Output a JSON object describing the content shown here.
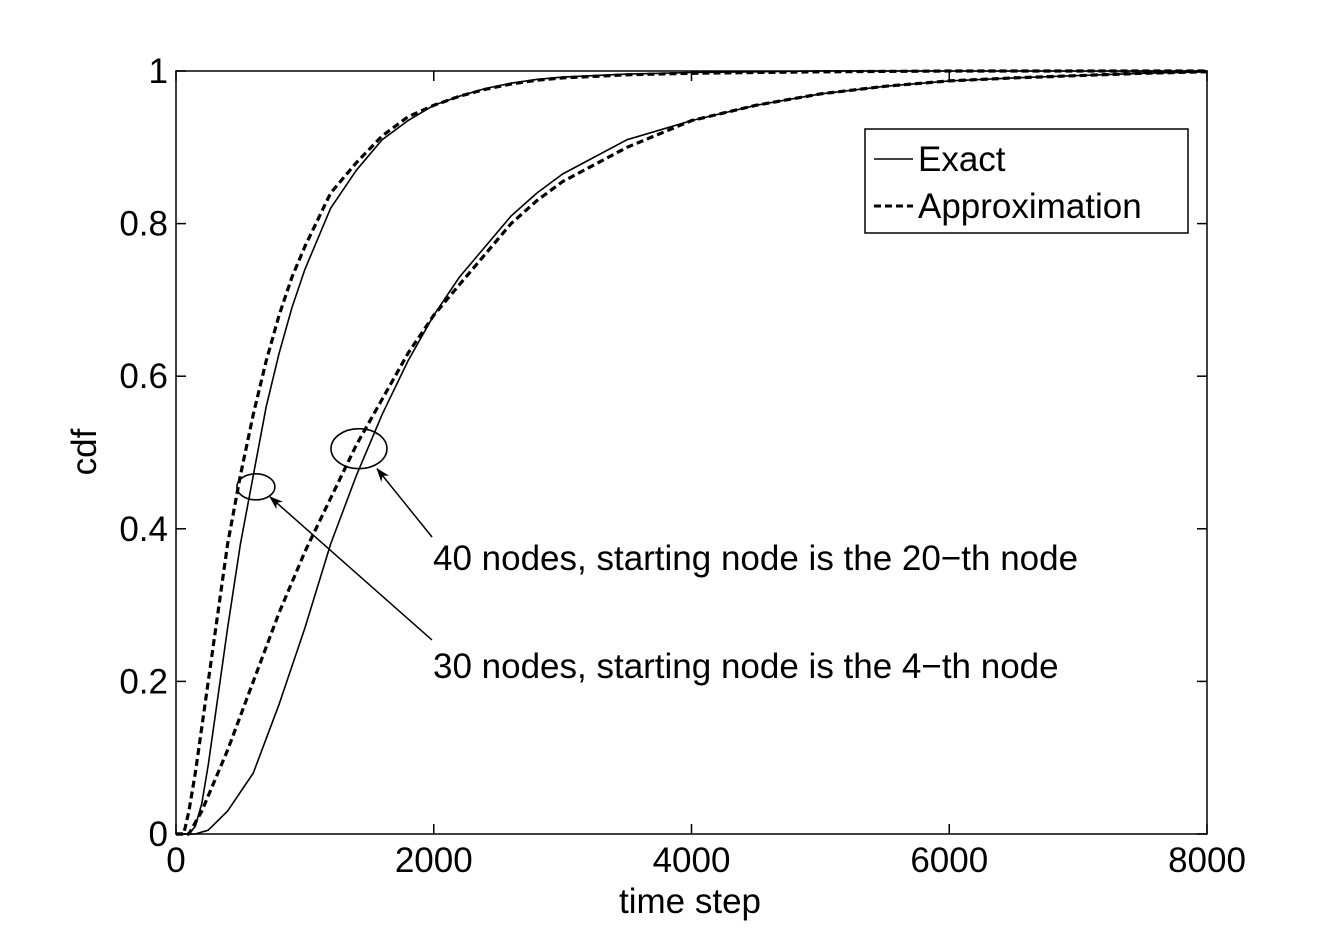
{
  "chart_data": {
    "type": "line",
    "title": "",
    "xlabel": "time step",
    "ylabel": "cdf",
    "xlim": [
      0,
      8000
    ],
    "ylim": [
      0,
      1
    ],
    "xticks": [
      0,
      2000,
      4000,
      6000,
      8000
    ],
    "yticks": [
      0,
      0.2,
      0.4,
      0.6,
      0.8,
      1
    ],
    "xtick_labels": [
      "0",
      "2000",
      "4000",
      "6000",
      "8000"
    ],
    "ytick_labels": [
      "0",
      "0.2",
      "0.4",
      "0.6",
      "0.8",
      "1"
    ],
    "grid": false,
    "legend": {
      "placement": "upper-right",
      "entries": [
        {
          "label": "Exact",
          "style": "solid"
        },
        {
          "label": "Approximation",
          "style": "dashed"
        }
      ]
    },
    "series": [
      {
        "group": "30 nodes, starting node is the 4-th node",
        "legend": "Exact",
        "style": "solid",
        "x": [
          0,
          100,
          150,
          200,
          250,
          300,
          400,
          500,
          600,
          700,
          800,
          900,
          1000,
          1200,
          1400,
          1600,
          1800,
          2000,
          2200,
          2400,
          2600,
          2800,
          3000,
          3500,
          4000,
          4500,
          5000,
          6000,
          7000,
          8000
        ],
        "y": [
          0,
          0,
          0.01,
          0.04,
          0.09,
          0.15,
          0.27,
          0.38,
          0.47,
          0.56,
          0.63,
          0.69,
          0.74,
          0.82,
          0.87,
          0.91,
          0.935,
          0.955,
          0.967,
          0.977,
          0.984,
          0.989,
          0.992,
          0.996,
          0.998,
          0.999,
          1,
          1,
          1,
          1
        ]
      },
      {
        "group": "30 nodes, starting node is the 4-th node",
        "legend": "Approximation",
        "style": "dashed",
        "x": [
          0,
          60,
          100,
          150,
          200,
          300,
          400,
          500,
          600,
          700,
          800,
          900,
          1000,
          1200,
          1400,
          1600,
          1800,
          2000,
          2200,
          2400,
          2600,
          2800,
          3000,
          3500,
          4000,
          4500,
          5000,
          6000,
          7000,
          8000
        ],
        "y": [
          0,
          0,
          0.03,
          0.08,
          0.14,
          0.26,
          0.38,
          0.47,
          0.55,
          0.62,
          0.68,
          0.73,
          0.77,
          0.84,
          0.88,
          0.915,
          0.94,
          0.955,
          0.967,
          0.976,
          0.983,
          0.988,
          0.991,
          0.995,
          0.997,
          0.998,
          0.999,
          1,
          1,
          1
        ]
      },
      {
        "group": "40 nodes, starting node is the 20-th node",
        "legend": "Exact",
        "style": "solid",
        "x": [
          0,
          150,
          250,
          400,
          600,
          800,
          1000,
          1200,
          1400,
          1600,
          1800,
          2000,
          2200,
          2400,
          2600,
          2800,
          3000,
          3500,
          4000,
          4500,
          5000,
          5500,
          6000,
          6500,
          7000,
          7500,
          8000
        ],
        "y": [
          0,
          0,
          0.005,
          0.03,
          0.08,
          0.17,
          0.27,
          0.38,
          0.47,
          0.55,
          0.62,
          0.68,
          0.73,
          0.77,
          0.81,
          0.84,
          0.865,
          0.91,
          0.935,
          0.955,
          0.97,
          0.98,
          0.987,
          0.991,
          0.994,
          0.997,
          0.999
        ]
      },
      {
        "group": "40 nodes, starting node is the 20-th node",
        "legend": "Approximation",
        "style": "dashed",
        "x": [
          0,
          100,
          200,
          400,
          600,
          800,
          1000,
          1200,
          1400,
          1600,
          1800,
          2000,
          2200,
          2400,
          2600,
          2800,
          3000,
          3500,
          4000,
          4500,
          5000,
          5500,
          6000,
          6500,
          7000,
          7500,
          8000
        ],
        "y": [
          0,
          0,
          0.03,
          0.11,
          0.2,
          0.29,
          0.37,
          0.44,
          0.51,
          0.57,
          0.63,
          0.68,
          0.72,
          0.76,
          0.8,
          0.83,
          0.855,
          0.9,
          0.935,
          0.955,
          0.97,
          0.98,
          0.987,
          0.991,
          0.994,
          0.997,
          0.999
        ]
      }
    ],
    "annotations": [
      {
        "text": "40 nodes, starting node is the 20−th node",
        "target": [
          1420,
          0.505
        ],
        "marker": "ellipse"
      },
      {
        "text": "30 nodes, starting node is the 4−th node",
        "target": [
          620,
          0.455
        ],
        "marker": "ellipse"
      }
    ]
  }
}
